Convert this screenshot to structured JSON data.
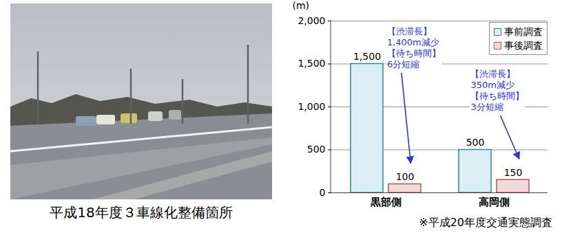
{
  "photo": {
    "caption": "平成18年度３車線化整備箇所"
  },
  "chart_data": {
    "type": "bar",
    "ylabel": "(m)",
    "categories": [
      "黒部側",
      "高岡側"
    ],
    "series": [
      {
        "name": "事前調査",
        "color": "#dbeef4",
        "values": [
          1500,
          500
        ],
        "value_labels": [
          "1,500",
          "500"
        ]
      },
      {
        "name": "事後調査",
        "color": "#f2dcdb",
        "values": [
          100,
          150
        ]
      }
    ],
    "ylim": [
      0,
      2000
    ],
    "yticks": [
      0,
      500,
      {
        "value": 1000,
        "label": "1,000"
      },
      {
        "value": 1500,
        "label": "1,500"
      },
      {
        "value": 2000,
        "label": "2,000"
      }
    ],
    "grid": true,
    "data_labels": true,
    "legend": "top-right",
    "annotations": [
      {
        "category": "黒部側",
        "lines": [
          "【渋滞長】",
          "1,400m減少",
          "【待ち時間】",
          "6分短縮"
        ]
      },
      {
        "category": "高岡側",
        "lines": [
          "【渋滞長】",
          "350m減少",
          "【待ち時間】",
          "3分短縮"
        ]
      }
    ],
    "note": "※平成20年度交通実態調査"
  }
}
